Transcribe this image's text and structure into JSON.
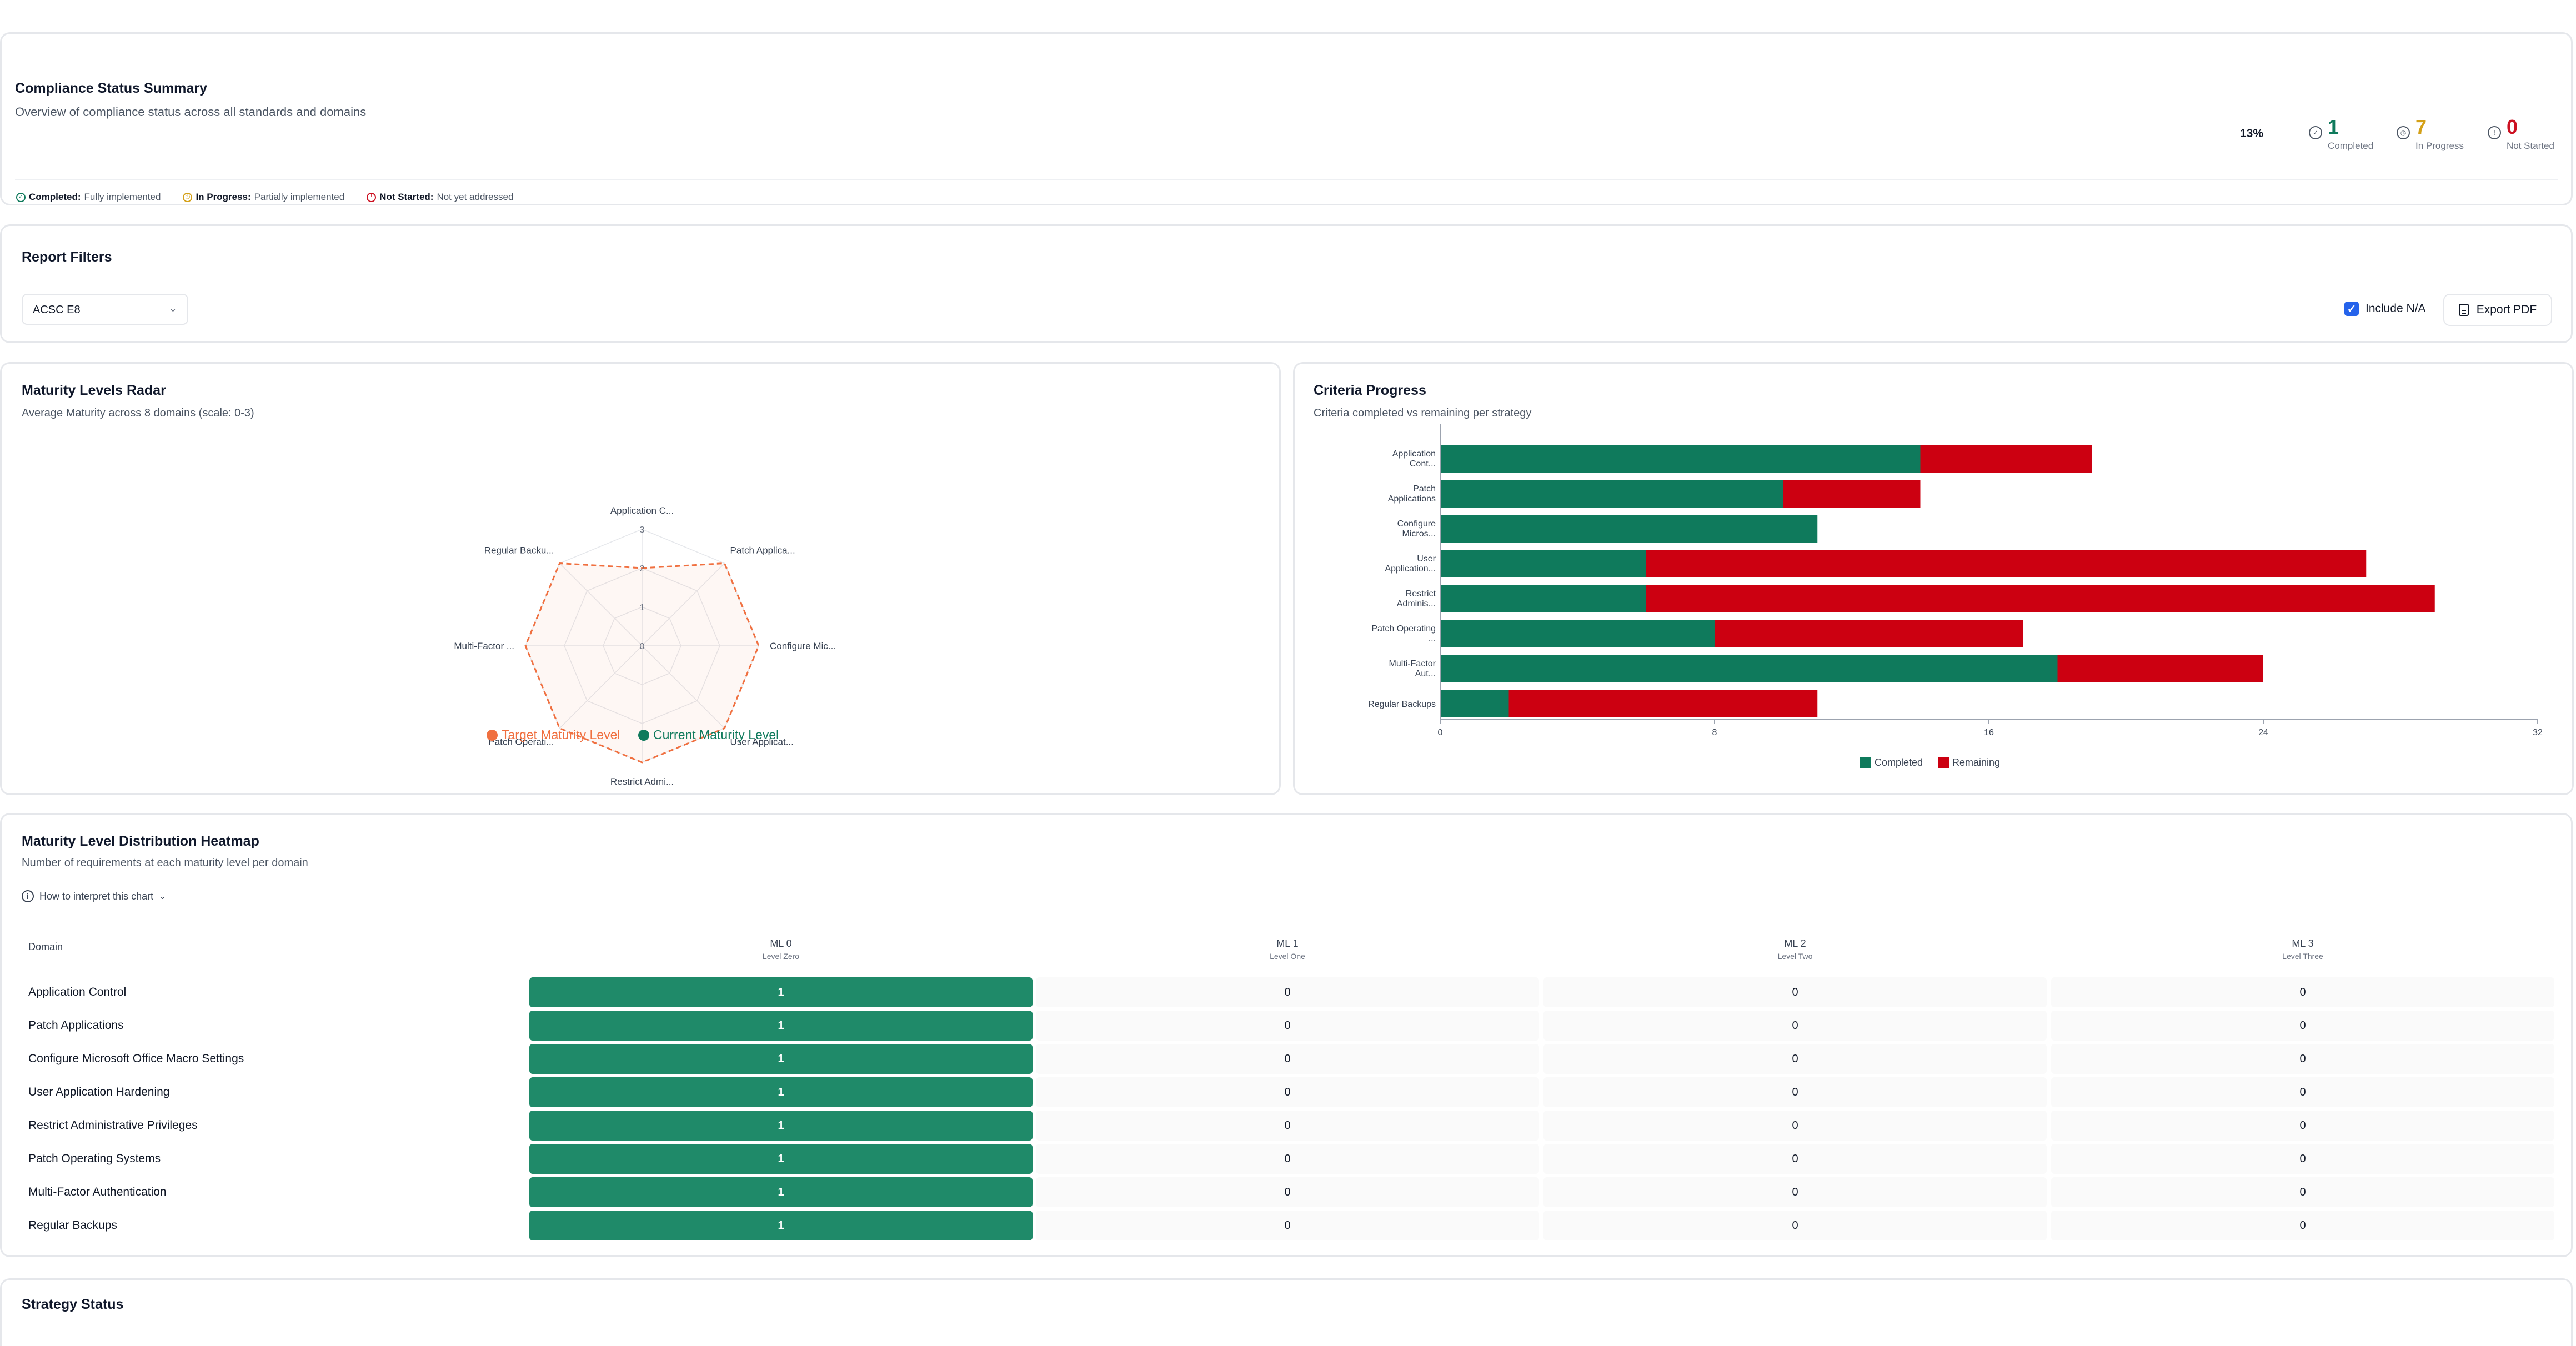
{
  "summary": {
    "title": "Compliance Status Summary",
    "subtitle": "Overview of compliance status across all standards and domains",
    "percent": "13%",
    "completed": {
      "value": "1",
      "label": "Completed"
    },
    "in_progress": {
      "value": "7",
      "label": "In Progress"
    },
    "not_started": {
      "value": "0",
      "label": "Not Started"
    },
    "legend": {
      "completed_label": "Completed:",
      "completed_desc": "Fully implemented",
      "in_progress_label": "In Progress:",
      "in_progress_desc": "Partially implemented",
      "not_started_label": "Not Started:",
      "not_started_desc": "Not yet addressed"
    },
    "colors": {
      "completed": "#0f7a5c",
      "in_progress": "#d4a017",
      "not_started": "#cc1122"
    }
  },
  "filters": {
    "title": "Report Filters",
    "standard_selected": "ACSC E8",
    "include_na_label": "Include N/A",
    "include_na_checked": true,
    "export_label": "Export PDF"
  },
  "radar": {
    "title": "Maturity Levels Radar",
    "subtitle": "Average Maturity across 8 domains (scale: 0-3)",
    "axes": [
      "Application C...",
      "Patch Applica...",
      "Configure Mic...",
      "User Applicat...",
      "Restrict Admi...",
      "Patch Operati...",
      "Multi-Factor ...",
      "Regular Backu..."
    ],
    "ticks": [
      "0",
      "1",
      "2",
      "3"
    ],
    "target_label": "Target Maturity Level",
    "current_label": "Current Maturity Level",
    "target_values": [
      2,
      3,
      3,
      3,
      3,
      3,
      3,
      3
    ],
    "current_values": [
      0,
      0,
      0,
      0,
      0,
      0,
      0,
      0
    ],
    "colors": {
      "target": "#f07040",
      "current": "#0f7a5c"
    }
  },
  "criteria": {
    "title": "Criteria Progress",
    "subtitle": "Criteria completed vs remaining per strategy",
    "legend_completed": "Completed",
    "legend_remaining": "Remaining",
    "colors": {
      "completed": "#0f7a5c",
      "remaining": "#cc0011"
    }
  },
  "chart_data": {
    "type": "bar",
    "orientation": "horizontal",
    "stacked": true,
    "categories": [
      [
        "Application",
        "Cont..."
      ],
      [
        "Patch",
        "Applications"
      ],
      [
        "Configure",
        "Micros..."
      ],
      [
        "User",
        "Application..."
      ],
      [
        "Restrict",
        "Adminis..."
      ],
      [
        "Patch Operating",
        "..."
      ],
      [
        "Multi-Factor",
        "Aut..."
      ],
      [
        "Regular Backups"
      ]
    ],
    "series": [
      {
        "name": "Completed",
        "values": [
          14,
          10,
          11,
          6,
          6,
          8,
          18,
          2
        ]
      },
      {
        "name": "Remaining",
        "values": [
          5,
          4,
          0,
          21,
          23,
          9,
          6,
          9
        ]
      }
    ],
    "xlim": [
      0,
      32
    ],
    "xticks": [
      "0",
      "8",
      "16",
      "24",
      "32"
    ],
    "legend": "bottom"
  },
  "heatmap": {
    "title": "Maturity Level Distribution Heatmap",
    "subtitle": "Number of requirements at each maturity level per domain",
    "interpret_label": "How to interpret this chart",
    "domain_header": "Domain",
    "columns": [
      {
        "title": "ML 0",
        "sub": "Level Zero"
      },
      {
        "title": "ML 1",
        "sub": "Level One"
      },
      {
        "title": "ML 2",
        "sub": "Level Two"
      },
      {
        "title": "ML 3",
        "sub": "Level Three"
      }
    ],
    "rows": [
      {
        "domain": "Application Control",
        "values": [
          "1",
          "0",
          "0",
          "0"
        ]
      },
      {
        "domain": "Patch Applications",
        "values": [
          "1",
          "0",
          "0",
          "0"
        ]
      },
      {
        "domain": "Configure Microsoft Office Macro Settings",
        "values": [
          "1",
          "0",
          "0",
          "0"
        ]
      },
      {
        "domain": "User Application Hardening",
        "values": [
          "1",
          "0",
          "0",
          "0"
        ]
      },
      {
        "domain": "Restrict Administrative Privileges",
        "values": [
          "1",
          "0",
          "0",
          "0"
        ]
      },
      {
        "domain": "Patch Operating Systems",
        "values": [
          "1",
          "0",
          "0",
          "0"
        ]
      },
      {
        "domain": "Multi-Factor Authentication",
        "values": [
          "1",
          "0",
          "0",
          "0"
        ]
      },
      {
        "domain": "Regular Backups",
        "values": [
          "1",
          "0",
          "0",
          "0"
        ]
      }
    ]
  },
  "strategy": {
    "title": "Strategy Status"
  }
}
